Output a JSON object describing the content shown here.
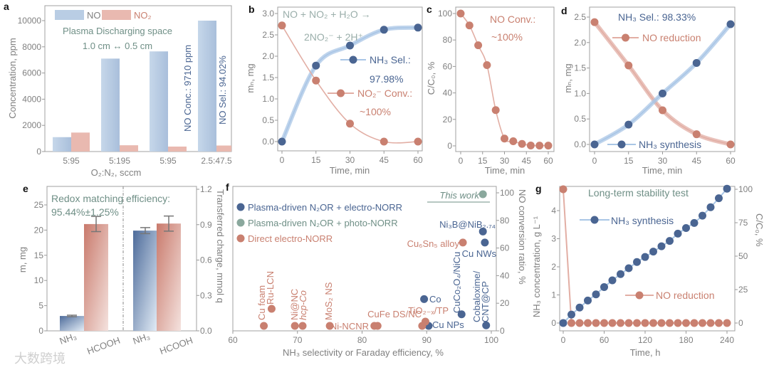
{
  "figure": {
    "watermark": "大数跨境"
  },
  "colors": {
    "blue_dot": "#4a6592",
    "blue_line": "#a9c6e6",
    "red_dot": "#c98070",
    "red_line": "#e2aea4",
    "green": "#6f8f86",
    "gray": "#808080",
    "no_bar": "#b9cde4",
    "no2_bar": "#e9b9b0"
  },
  "chart_data": [
    {
      "panel": "a",
      "type": "bar",
      "categories": [
        "5:95",
        "5:195",
        "5:95",
        "2.5:47.5"
      ],
      "series": [
        {
          "name": "NO",
          "values": [
            1100,
            7100,
            7650,
            10000
          ]
        },
        {
          "name": "NO₂",
          "values": [
            1450,
            480,
            380,
            460
          ]
        }
      ],
      "ylabel": "Concentration, ppm",
      "xlabel": "O₂:N₂, sccm",
      "ylim": [
        0,
        10000
      ],
      "yticks": [
        "0",
        "2000",
        "4000",
        "6000",
        "8000",
        "10000"
      ],
      "annotations": [
        "Plasma Discharging space",
        "1.0 cm ↔ 0.5 cm",
        "NO Conc.: 9710 ppm",
        "NO Sel.: 94.02%"
      ]
    },
    {
      "panel": "b",
      "type": "line",
      "x": [
        0,
        15,
        30,
        45,
        60
      ],
      "series": [
        {
          "name": "NH₃ Sel.:",
          "note": "97.98%",
          "values": [
            0,
            1.78,
            2.25,
            2.62,
            2.67
          ]
        },
        {
          "name": "NO₂⁻ Conv.:",
          "note": "~100%",
          "values": [
            2.72,
            1.43,
            0.42,
            0.0,
            0.0
          ]
        }
      ],
      "ylabel": "mₙ, mg",
      "xlabel": "Time, min",
      "xlim": [
        0,
        60
      ],
      "ylim": [
        0,
        3
      ],
      "xticks": [
        "0",
        "15",
        "30",
        "45",
        "60"
      ],
      "yticks": [
        "0.0",
        "0.5",
        "1.0",
        "1.5",
        "2.0",
        "2.5",
        "3.0"
      ],
      "annotations": [
        "NO + NO₂ + H₂O →",
        "2NO₂⁻ + 2H⁺"
      ]
    },
    {
      "panel": "c",
      "type": "line",
      "x": [
        0,
        6,
        12,
        18,
        24,
        30,
        36,
        42,
        48,
        54,
        60
      ],
      "series": [
        {
          "name": "NO",
          "values": [
            100,
            91,
            76,
            61,
            27,
            5.5,
            3.5,
            1.5,
            0.3,
            0.2,
            0.2
          ]
        }
      ],
      "ylabel": "C/C₀, %",
      "xlabel": "Time, min",
      "xlim": [
        0,
        60
      ],
      "ylim": [
        0,
        100
      ],
      "xticks": [
        "0",
        "15",
        "30",
        "45",
        "60"
      ],
      "yticks": [
        "0",
        "20",
        "40",
        "60",
        "80",
        "100"
      ],
      "annotations": [
        "NO Conv.:",
        "~100%"
      ]
    },
    {
      "panel": "d",
      "type": "line",
      "x": [
        0,
        15,
        30,
        45,
        60
      ],
      "series": [
        {
          "name": "NO reduction",
          "values": [
            2.4,
            1.55,
            0.67,
            0.2,
            0.0
          ]
        },
        {
          "name": "NH₃ synthesis",
          "values": [
            0.0,
            0.39,
            1.0,
            1.6,
            2.36
          ]
        }
      ],
      "ylabel": "mₙ, mg",
      "xlabel": "Time, min",
      "xlim": [
        0,
        60
      ],
      "ylim": [
        0,
        2.5
      ],
      "xticks": [
        "0",
        "15",
        "30",
        "45",
        "60"
      ],
      "yticks": [
        "0.0",
        "0.5",
        "1.0",
        "1.5",
        "2.0",
        "2.5"
      ],
      "annotations": [
        "NH₃ Sel.: 98.33%"
      ]
    },
    {
      "panel": "e",
      "type": "bar",
      "groups": [
        {
          "bars": [
            {
              "name": "NH₃",
              "value": 2.95,
              "err": 0.15
            },
            {
              "name": "HCOOH",
              "value": 21.2,
              "err": 1.5
            }
          ]
        },
        {
          "bars": [
            {
              "name": "NH₃",
              "value": 19.9,
              "err": 0.6
            },
            {
              "name": "HCOOH",
              "value": 21.3,
              "err": 1.5
            }
          ]
        }
      ],
      "ylabel": "m, mg",
      "y2label": "Transferred charge, mmol q",
      "ylim": [
        0,
        25
      ],
      "y2lim": [
        0,
        1.2
      ],
      "yticks": [
        "0",
        "5",
        "10",
        "15",
        "20",
        "25"
      ],
      "y2ticks": [
        "0.0",
        "0.3",
        "0.6",
        "0.9",
        "1.2"
      ],
      "annotations": [
        "Redox matching efficiency:",
        "95.44%±1.25%"
      ]
    },
    {
      "panel": "f",
      "type": "scatter",
      "legend": [
        "Plasma-driven N₂OR + electro-NORR",
        "Plasma-driven N₂OR + photo-NORR",
        "Direct electro-NORR"
      ],
      "points": [
        {
          "label": "This work",
          "x": 98.7,
          "y": 99,
          "group": 1
        },
        {
          "label": "Ni₃B@NiB₂.₇₄",
          "x": 98.7,
          "y": 72,
          "group": 0
        },
        {
          "label": "Cu NWs",
          "x": 99.0,
          "y": 64,
          "group": 0
        },
        {
          "label": "Cu₆Sn₅ alloy",
          "x": 95.6,
          "y": 64,
          "group": 2
        },
        {
          "label": "CuCo₂O₄/NiCu",
          "x": 95.4,
          "y": 12,
          "group": 0
        },
        {
          "label": "Cobaloxime/",
          "label2": "CNT@CP",
          "x": 99.2,
          "y": 4,
          "group": 0
        },
        {
          "label": "Co",
          "x": 89.6,
          "y": 23,
          "group": 0
        },
        {
          "label": "Cu NPs",
          "x": 90.3,
          "y": 3.6,
          "group": 0
        },
        {
          "label": "TiO₂₋ₓ/TP",
          "x": 89.8,
          "y": 6.7,
          "group": 2
        },
        {
          "label": "",
          "x": 89.3,
          "y": 3.6,
          "group": 2
        },
        {
          "label": "CuFe DS/NC",
          "x": 82.4,
          "y": 3.6,
          "group": 2
        },
        {
          "label": "Ni-NCNR",
          "x": 81.9,
          "y": 3.6,
          "group": 2
        },
        {
          "label": "MoS₂ NS",
          "x": 75.0,
          "y": 3.6,
          "group": 2
        },
        {
          "label": "hcp-Co",
          "x": 70.8,
          "y": 3.6,
          "group": 2
        },
        {
          "label": "Ni@NC",
          "x": 69.6,
          "y": 3.6,
          "group": 2
        },
        {
          "label": "Ru-LCN",
          "x": 66.0,
          "y": 16,
          "group": 2
        },
        {
          "label": "Cu foam",
          "x": 64.8,
          "y": 3.6,
          "group": 2
        }
      ],
      "xlabel": "NH₃ selectivity or Faraday efficiency, %",
      "y2label": "NO conversion ratio, %",
      "xlim": [
        60,
        100
      ],
      "y2lim": [
        0,
        100
      ],
      "xticks": [
        "60",
        "70",
        "80",
        "90",
        "100"
      ],
      "y2ticks": [
        "0",
        "20",
        "40",
        "60",
        "80",
        "100"
      ]
    },
    {
      "panel": "g",
      "type": "line",
      "x": [
        0,
        12,
        24,
        36,
        48,
        60,
        72,
        84,
        96,
        108,
        120,
        132,
        144,
        156,
        168,
        180,
        192,
        204,
        216,
        228,
        240
      ],
      "series": [
        {
          "name": "NH₃ synthesis",
          "axis": "left",
          "values": [
            0,
            0.3,
            0.55,
            0.8,
            1.02,
            1.28,
            1.52,
            1.74,
            1.95,
            2.17,
            2.35,
            2.54,
            2.73,
            2.92,
            3.18,
            3.38,
            3.56,
            3.82,
            4.12,
            4.44,
            4.78
          ]
        },
        {
          "name": "NO reduction",
          "axis": "right",
          "values": [
            100,
            0,
            0,
            0,
            0,
            0,
            0,
            0,
            0,
            0,
            0,
            0,
            0,
            0,
            0,
            0,
            0,
            0,
            0,
            0,
            0
          ]
        }
      ],
      "ylabel": "NH₃ concentration, g L⁻¹",
      "y2label": "C/C₀, %",
      "xlabel": "Time, h",
      "xlim": [
        0,
        240
      ],
      "ylim": [
        0,
        4
      ],
      "y2lim": [
        0,
        100
      ],
      "xticks": [
        "0",
        "60",
        "120",
        "180",
        "240"
      ],
      "yticks": [
        "0",
        "1",
        "2",
        "3",
        "4"
      ],
      "y2ticks": [
        "0",
        "25",
        "50",
        "75",
        "100"
      ],
      "annotations": [
        "Long-term stability test"
      ]
    }
  ]
}
